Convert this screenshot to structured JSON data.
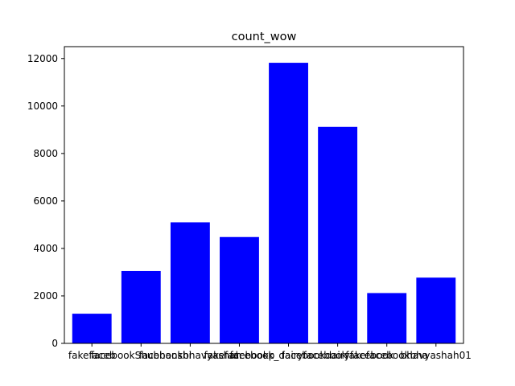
{
  "chart_data": {
    "type": "bar",
    "title": "count_wow",
    "xlabel": "",
    "ylabel": "",
    "categories": [
      "fakefaceb",
      "facebookShubhanshi",
      "facebookbhavyashah",
      "fakefacebookp",
      "facebook_dairyfacebook",
      "facebookdairyfacebook",
      "fakefacebookbha",
      "bhavyashah01"
    ],
    "values": [
      1250,
      3050,
      5100,
      4480,
      11820,
      9120,
      2120,
      2770
    ],
    "ylim": [
      0,
      12500
    ],
    "yticks": [
      0,
      2000,
      4000,
      6000,
      8000,
      10000,
      12000
    ],
    "bar_color": "#0000ff",
    "grid": false
  }
}
